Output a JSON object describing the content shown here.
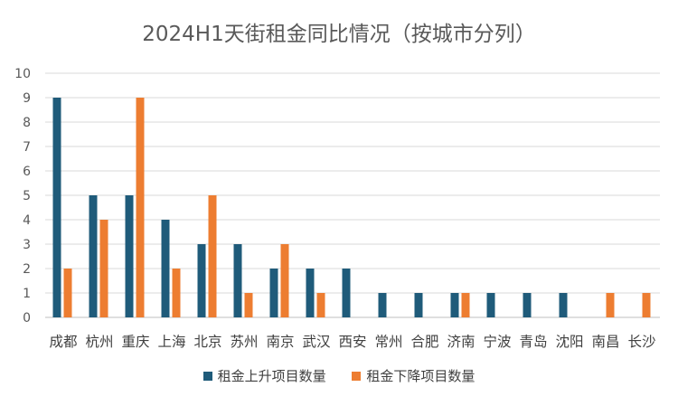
{
  "chart_data": {
    "type": "bar",
    "title": "2024H1天街租金同比情况（按城市分列）",
    "categories": [
      "成都",
      "杭州",
      "重庆",
      "上海",
      "北京",
      "苏州",
      "南京",
      "武汉",
      "西安",
      "常州",
      "合肥",
      "济南",
      "宁波",
      "青岛",
      "沈阳",
      "南昌",
      "长沙"
    ],
    "series": [
      {
        "name": "租金上升项目数量",
        "color": "#1f5b7a",
        "values": [
          9,
          5,
          5,
          4,
          3,
          3,
          2,
          2,
          2,
          1,
          1,
          1,
          1,
          1,
          1,
          0,
          0
        ]
      },
      {
        "name": "租金下降项目数量",
        "color": "#ed7d31",
        "values": [
          2,
          4,
          9,
          2,
          5,
          1,
          3,
          1,
          0,
          0,
          0,
          1,
          0,
          0,
          0,
          1,
          1
        ]
      }
    ],
    "yticks": [
      "0",
      "1",
      "2",
      "3",
      "4",
      "5",
      "6",
      "7",
      "8",
      "9",
      "10"
    ],
    "ylim": [
      0,
      10
    ],
    "grid": true,
    "legend_position": "bottom"
  }
}
